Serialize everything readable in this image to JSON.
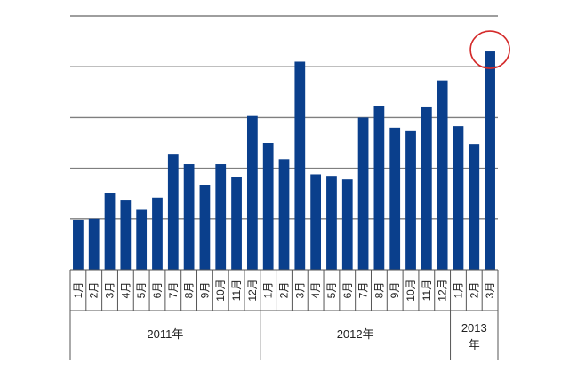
{
  "chart_data": {
    "type": "bar",
    "title": "",
    "xlabel": "",
    "ylabel": "",
    "ylim": [
      0,
      5
    ],
    "grid": true,
    "y_tick_labels_visible": false,
    "categories": [
      "1月",
      "2月",
      "3月",
      "4月",
      "5月",
      "6月",
      "7月",
      "8月",
      "9月",
      "10月",
      "11月",
      "12月",
      "1月",
      "2月",
      "3月",
      "4月",
      "5月",
      "6月",
      "7月",
      "8月",
      "9月",
      "10月",
      "11月",
      "12月",
      "1月",
      "2月",
      "3月"
    ],
    "groups": [
      {
        "label": "2011年",
        "count": 12
      },
      {
        "label": "2012年",
        "count": 12
      },
      {
        "label": "2013年",
        "count": 3
      }
    ],
    "values": [
      0.98,
      1.0,
      1.52,
      1.38,
      1.18,
      1.42,
      2.27,
      2.08,
      1.67,
      2.08,
      1.82,
      3.03,
      2.5,
      2.18,
      4.1,
      1.88,
      1.85,
      1.78,
      3.0,
      3.23,
      2.8,
      2.73,
      3.2,
      3.73,
      2.83,
      2.48,
      4.3
    ],
    "bar_color": "#0a3f8c",
    "highlight": {
      "index": 26,
      "shape": "circle",
      "color": "#d42a2a"
    }
  }
}
